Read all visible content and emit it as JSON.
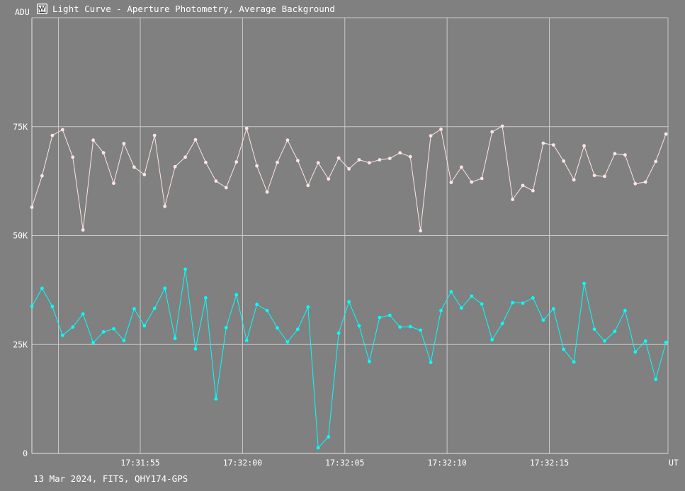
{
  "window": {
    "title": "Light Curve - Aperture Photometry, Average Background",
    "footer": "13 Mar 2024, FITS, QHY174-GPS",
    "icon": "light-curve-app-icon"
  },
  "chart_data": {
    "type": "line",
    "ylabel": "ADU",
    "xlabel": "UT",
    "ylim": [
      0,
      100000
    ],
    "y_ticks": [
      0,
      25000,
      50000,
      75000
    ],
    "y_tick_labels": [
      "0",
      "25K",
      "50K",
      "75K"
    ],
    "xlim": [
      "17:31:49.7",
      "17:32:20.8"
    ],
    "x_tick_labels": [
      "17:31:55",
      "17:32:00",
      "17:32:05",
      "17:32:10",
      "17:32:15"
    ],
    "x_ticks": [
      "17:31:55",
      "17:32:00",
      "17:32:05",
      "17:32:10",
      "17:32:15"
    ],
    "grid": true,
    "x": [
      "17:31:49.70",
      "17:31:50.20",
      "17:31:50.70",
      "17:31:51.20",
      "17:31:51.70",
      "17:31:52.20",
      "17:31:52.70",
      "17:31:53.20",
      "17:31:53.70",
      "17:31:54.20",
      "17:31:54.70",
      "17:31:55.20",
      "17:31:55.70",
      "17:31:56.20",
      "17:31:56.70",
      "17:31:57.20",
      "17:31:57.70",
      "17:31:58.20",
      "17:31:58.70",
      "17:31:59.20",
      "17:31:59.70",
      "17:32:00.20",
      "17:32:00.70",
      "17:32:01.20",
      "17:32:01.70",
      "17:32:02.20",
      "17:32:02.70",
      "17:32:03.20",
      "17:32:03.70",
      "17:32:04.20",
      "17:32:04.70",
      "17:32:05.20",
      "17:32:05.70",
      "17:32:06.20",
      "17:32:06.70",
      "17:32:07.20",
      "17:32:07.70",
      "17:32:08.20",
      "17:32:08.70",
      "17:32:09.20",
      "17:32:09.70",
      "17:32:10.20",
      "17:32:10.70",
      "17:32:11.20",
      "17:32:11.70",
      "17:32:12.20",
      "17:32:12.70",
      "17:32:13.20",
      "17:32:13.70",
      "17:32:14.20",
      "17:32:14.70",
      "17:32:15.20",
      "17:32:15.70",
      "17:32:16.20",
      "17:32:16.70",
      "17:32:17.20",
      "17:32:17.70",
      "17:32:18.20",
      "17:32:18.70",
      "17:32:19.20",
      "17:32:19.70",
      "17:32:20.20",
      "17:32:20.70"
    ],
    "series": [
      {
        "color": "#ffe4e4",
        "values": [
          56500,
          63700,
          73000,
          74300,
          68000,
          51300,
          71900,
          69000,
          62000,
          71100,
          65700,
          64000,
          73000,
          56700,
          65800,
          68000,
          72000,
          66800,
          62500,
          61000,
          66900,
          74600,
          66000,
          60000,
          66800,
          71900,
          67200,
          61500,
          66700,
          63000,
          67800,
          65300,
          67400,
          66700,
          67400,
          67700,
          69000,
          68100,
          51100,
          72900,
          74400,
          62200,
          65700,
          62300,
          63100,
          73800,
          75100,
          58300,
          61500,
          60300,
          71200,
          70800,
          67100,
          62800,
          70600,
          63800,
          63600,
          68800,
          68500,
          61900,
          62300,
          67000,
          73300
        ]
      },
      {
        "color": "#00ffff",
        "values": [
          33700,
          37900,
          33700,
          27100,
          29000,
          32000,
          25400,
          27900,
          28600,
          25900,
          33200,
          29300,
          33300,
          37900,
          26400,
          42300,
          24000,
          35700,
          12500,
          28900,
          36400,
          25900,
          34200,
          32800,
          28800,
          25600,
          28500,
          33600,
          1300,
          3800,
          27600,
          34800,
          29300,
          21100,
          31200,
          31700,
          29000,
          29100,
          28300,
          20900,
          32800,
          37100,
          33400,
          36100,
          34300,
          26100,
          29800,
          34600,
          34500,
          35700,
          30600,
          33200,
          23900,
          21000,
          39000,
          28500,
          25800,
          28000,
          32800,
          23300,
          25800,
          17000,
          25500
        ]
      }
    ]
  }
}
